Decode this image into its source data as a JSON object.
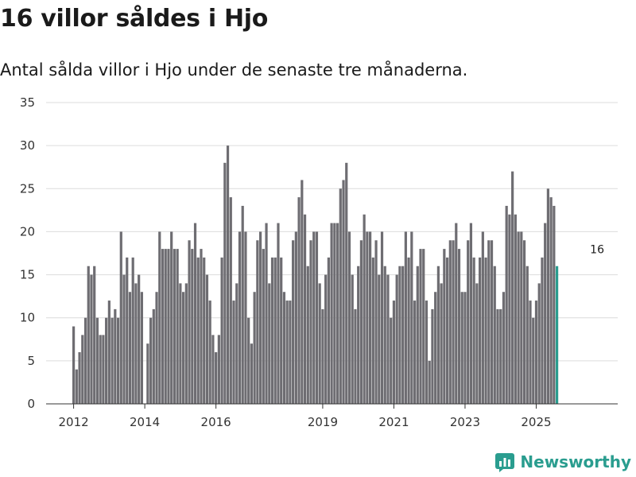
{
  "title": "16 villor såldes i Hjo",
  "subtitle": "Antal sålda villor i Hjo under de senaste tre månaderna.",
  "brand": "Newsworthy",
  "chart_data": {
    "type": "bar",
    "title": "16 villor såldes i Hjo",
    "subtitle": "Antal sålda villor i Hjo under de senaste tre månaderna.",
    "xlabel": "",
    "ylabel": "",
    "ylim": [
      0,
      35
    ],
    "yticks": [
      0,
      5,
      10,
      15,
      20,
      25,
      30,
      35
    ],
    "grid": true,
    "xticks": [
      {
        "label": "2012",
        "index": 0
      },
      {
        "label": "2014",
        "index": 24
      },
      {
        "label": "2016",
        "index": 48
      },
      {
        "label": "2019",
        "index": 84
      },
      {
        "label": "2021",
        "index": 108
      },
      {
        "label": "2023",
        "index": 132
      },
      {
        "label": "2025",
        "index": 156
      }
    ],
    "start": "2012-01",
    "period": "rolling three months, monthly",
    "values": [
      9,
      4,
      6,
      8,
      10,
      16,
      15,
      16,
      10,
      8,
      8,
      10,
      12,
      10,
      11,
      10,
      20,
      15,
      17,
      13,
      17,
      14,
      15,
      13,
      0,
      7,
      10,
      11,
      13,
      20,
      18,
      18,
      18,
      20,
      18,
      18,
      14,
      13,
      14,
      19,
      18,
      21,
      17,
      18,
      17,
      15,
      12,
      8,
      6,
      8,
      17,
      28,
      30,
      24,
      12,
      14,
      20,
      23,
      20,
      10,
      7,
      13,
      19,
      20,
      18,
      21,
      14,
      17,
      17,
      21,
      17,
      13,
      12,
      12,
      19,
      20,
      24,
      26,
      22,
      16,
      19,
      20,
      20,
      14,
      11,
      15,
      17,
      21,
      21,
      21,
      25,
      26,
      28,
      20,
      15,
      11,
      16,
      19,
      22,
      20,
      20,
      17,
      19,
      15,
      20,
      16,
      15,
      10,
      12,
      15,
      16,
      16,
      20,
      17,
      20,
      12,
      16,
      18,
      18,
      12,
      5,
      11,
      13,
      16,
      14,
      18,
      17,
      19,
      19,
      21,
      18,
      13,
      13,
      19,
      21,
      17,
      14,
      17,
      20,
      17,
      19,
      19,
      16,
      11,
      11,
      13,
      23,
      22,
      27,
      22,
      20,
      20,
      19,
      16,
      12,
      10,
      12,
      14,
      17,
      21,
      25,
      24,
      23,
      16
    ],
    "highlight_color": "#2a9d8f",
    "bar_color": "#6e6d72",
    "annotation": {
      "label": "16",
      "index": 176,
      "value": 16
    }
  }
}
